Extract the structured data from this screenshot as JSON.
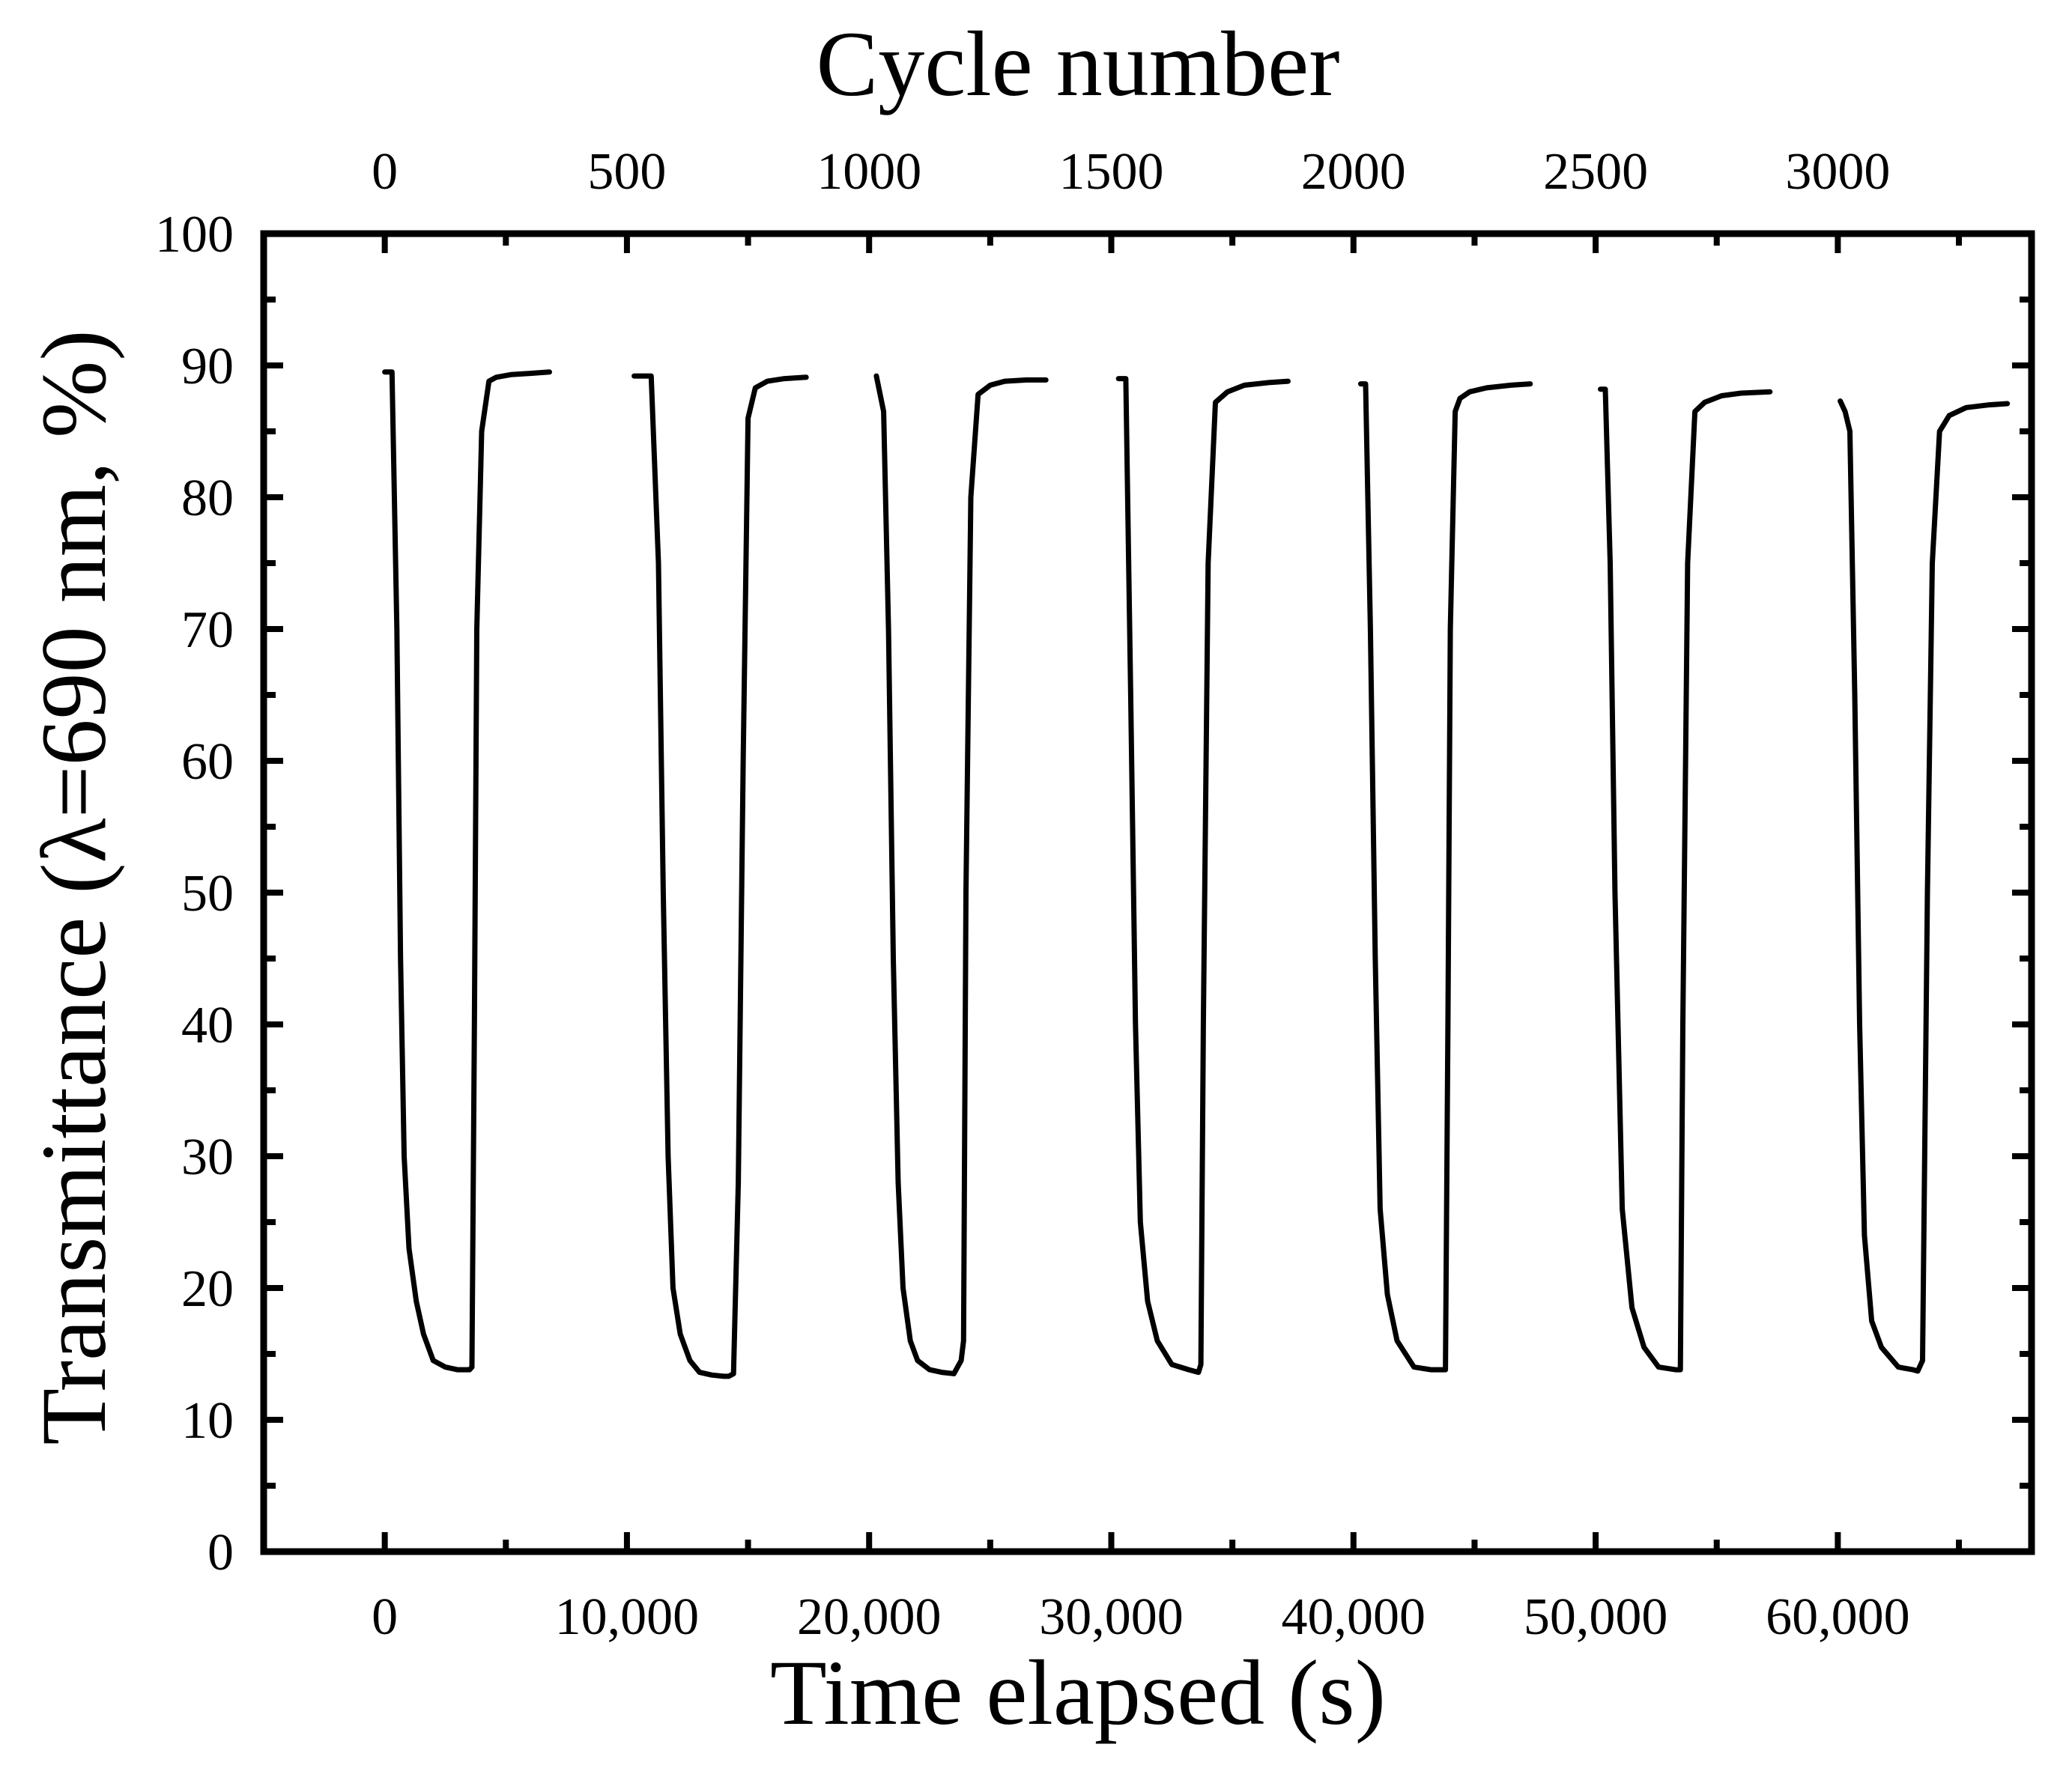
{
  "chart_data": {
    "type": "line",
    "title": "",
    "xlabel": "Time elapsed (s)",
    "ylabel": "Transmittance (λ=690 nm, %)",
    "top_xlabel": "Cycle number",
    "xlim": [
      -5000,
      68000
    ],
    "ylim": [
      0,
      100
    ],
    "grid": false,
    "legend": "none",
    "x_ticks": [
      {
        "value": 0,
        "label": "0"
      },
      {
        "value": 10000,
        "label": "10,000"
      },
      {
        "value": 20000,
        "label": "20,000"
      },
      {
        "value": 30000,
        "label": "30,000"
      },
      {
        "value": 40000,
        "label": "40,000"
      },
      {
        "value": 50000,
        "label": "50,000"
      },
      {
        "value": 60000,
        "label": "60,000"
      }
    ],
    "x_minor_ticks": [
      5000,
      15000,
      25000,
      35000,
      45000,
      55000,
      65000
    ],
    "y_ticks": [
      {
        "value": 0,
        "label": "0"
      },
      {
        "value": 10,
        "label": "10"
      },
      {
        "value": 20,
        "label": "20"
      },
      {
        "value": 30,
        "label": "30"
      },
      {
        "value": 40,
        "label": "40"
      },
      {
        "value": 50,
        "label": "50"
      },
      {
        "value": 60,
        "label": "60"
      },
      {
        "value": 70,
        "label": "70"
      },
      {
        "value": 80,
        "label": "80"
      },
      {
        "value": 90,
        "label": "90"
      },
      {
        "value": 100,
        "label": "100"
      }
    ],
    "y_minor_ticks": [
      5,
      15,
      25,
      35,
      45,
      55,
      65,
      75,
      85,
      95
    ],
    "top_ticks": [
      {
        "value": 0,
        "label": "0"
      },
      {
        "value": 10000,
        "label": "500"
      },
      {
        "value": 20000,
        "label": "1000"
      },
      {
        "value": 30000,
        "label": "1500"
      },
      {
        "value": 40000,
        "label": "2000"
      },
      {
        "value": 50000,
        "label": "2500"
      },
      {
        "value": 60000,
        "label": "3000"
      }
    ],
    "top_minor_ticks": [
      5000,
      15000,
      25000,
      35000,
      45000,
      55000,
      65000
    ],
    "series": [
      {
        "name": "Transmittance",
        "segments": [
          {
            "x": [
              0,
              300,
              500,
              650,
              800,
              1000,
              1300,
              1600,
              2000,
              2500,
              3000,
              3300,
              3500,
              3600,
              3700,
              3800,
              4000,
              4300,
              4600,
              5200,
              6000,
              6800
            ],
            "y": [
              89.5,
              89.5,
              70,
              45,
              30,
              23,
              19,
              16.5,
              14.5,
              14,
              13.8,
              13.8,
              13.8,
              14.0,
              40,
              70,
              85,
              88.8,
              89.1,
              89.3,
              89.4,
              89.5
            ]
          },
          {
            "x": [
              10300,
              11000,
              11300,
              11500,
              11700,
              11900,
              12200,
              12600,
              13000,
              13500,
              14000,
              14200,
              14400,
              14600,
              14800,
              15000,
              15300,
              15800,
              16500,
              17400
            ],
            "y": [
              89.2,
              89.2,
              75,
              50,
              30,
              20,
              16.5,
              14.5,
              13.6,
              13.4,
              13.3,
              13.3,
              13.5,
              28,
              60,
              86,
              88.3,
              88.8,
              89.0,
              89.1
            ]
          },
          {
            "x": [
              20300,
              20600,
              20800,
              21000,
              21200,
              21400,
              21700,
              22000,
              22500,
              23000,
              23500,
              23800,
              23900,
              24000,
              24200,
              24500,
              25000,
              25600,
              26500,
              27300
            ],
            "y": [
              89.2,
              86.5,
              70,
              45,
              28,
              20,
              16,
              14.5,
              13.8,
              13.6,
              13.5,
              14.5,
              16,
              50,
              80,
              87.8,
              88.5,
              88.8,
              88.9,
              88.9
            ]
          },
          {
            "x": [
              30300,
              30600,
              30800,
              31000,
              31200,
              31500,
              31900,
              32500,
              33200,
              33600,
              33700,
              33800,
              34000,
              34300,
              34800,
              35500,
              36500,
              37300
            ],
            "y": [
              89.0,
              89.0,
              65,
              40,
              25,
              19,
              16,
              14.2,
              13.8,
              13.6,
              14.2,
              40,
              75,
              87.2,
              88.0,
              88.5,
              88.7,
              88.8
            ]
          },
          {
            "x": [
              40300,
              40500,
              40700,
              40900,
              41100,
              41400,
              41800,
              42500,
              43200,
              43800,
              43900,
              44000,
              44200,
              44400,
              44800,
              45500,
              46500,
              47300
            ],
            "y": [
              88.6,
              88.6,
              70,
              45,
              26,
              19.5,
              16,
              14,
              13.8,
              13.8,
              40,
              70,
              86.5,
              87.5,
              88.0,
              88.3,
              88.5,
              88.6
            ]
          },
          {
            "x": [
              50200,
              50400,
              50600,
              50800,
              51100,
              51500,
              52000,
              52600,
              53300,
              53500,
              53600,
              53800,
              54100,
              54500,
              55200,
              56000,
              57200
            ],
            "y": [
              88.2,
              88.2,
              75,
              50,
              26,
              18.5,
              15.5,
              14,
              13.8,
              13.8,
              40,
              75,
              86.5,
              87.2,
              87.7,
              87.9,
              88.0
            ]
          },
          {
            "x": [
              60100,
              60300,
              60500,
              60700,
              60900,
              61100,
              61400,
              61800,
              62500,
              63100,
              63300,
              63500,
              63700,
              63900,
              64200,
              64600,
              65300,
              66200,
              67000
            ],
            "y": [
              87.3,
              86.5,
              85,
              65,
              40,
              24,
              17.5,
              15.5,
              14,
              13.8,
              13.7,
              14.5,
              50,
              75,
              85,
              86.2,
              86.8,
              87.0,
              87.1
            ]
          }
        ]
      }
    ]
  }
}
